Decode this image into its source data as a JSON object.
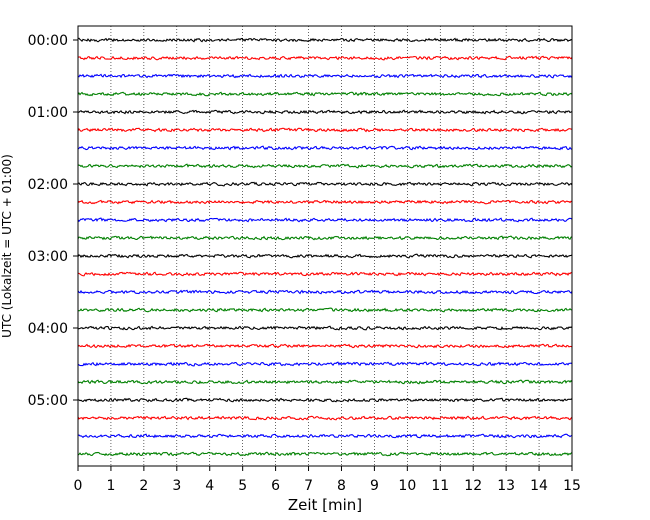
{
  "chart_data": {
    "type": "line",
    "title": "",
    "xlabel": "Zeit  [min]",
    "ylabel": "UTC (Lokalzeit = UTC + 01:00)",
    "xlim": [
      0,
      15
    ],
    "x_ticks": [
      "0",
      "1",
      "2",
      "3",
      "4",
      "5",
      "6",
      "7",
      "8",
      "9",
      "10",
      "11",
      "12",
      "13",
      "14",
      "15"
    ],
    "y_tick_labels": [
      "00:00",
      "01:00",
      "02:00",
      "03:00",
      "04:00",
      "05:00"
    ],
    "rows_per_hour": 4,
    "row_interval_minutes": 15,
    "row_colors": [
      "#000000",
      "#ff0000",
      "#0000ff",
      "#008000"
    ],
    "grid": "vertical-dotted",
    "rows": [
      {
        "start": "00:00",
        "color": "#000000"
      },
      {
        "start": "00:15",
        "color": "#ff0000"
      },
      {
        "start": "00:30",
        "color": "#0000ff"
      },
      {
        "start": "00:45",
        "color": "#008000"
      },
      {
        "start": "01:00",
        "color": "#000000"
      },
      {
        "start": "01:15",
        "color": "#ff0000"
      },
      {
        "start": "01:30",
        "color": "#0000ff"
      },
      {
        "start": "01:45",
        "color": "#008000"
      },
      {
        "start": "02:00",
        "color": "#000000"
      },
      {
        "start": "02:15",
        "color": "#ff0000"
      },
      {
        "start": "02:30",
        "color": "#0000ff"
      },
      {
        "start": "02:45",
        "color": "#008000"
      },
      {
        "start": "03:00",
        "color": "#000000"
      },
      {
        "start": "03:15",
        "color": "#ff0000"
      },
      {
        "start": "03:30",
        "color": "#0000ff"
      },
      {
        "start": "03:45",
        "color": "#008000"
      },
      {
        "start": "04:00",
        "color": "#000000"
      },
      {
        "start": "04:15",
        "color": "#ff0000"
      },
      {
        "start": "04:30",
        "color": "#0000ff"
      },
      {
        "start": "04:45",
        "color": "#008000"
      },
      {
        "start": "05:00",
        "color": "#000000"
      },
      {
        "start": "05:15",
        "color": "#ff0000"
      },
      {
        "start": "05:30",
        "color": "#0000ff"
      },
      {
        "start": "05:45",
        "color": "#008000"
      }
    ]
  }
}
